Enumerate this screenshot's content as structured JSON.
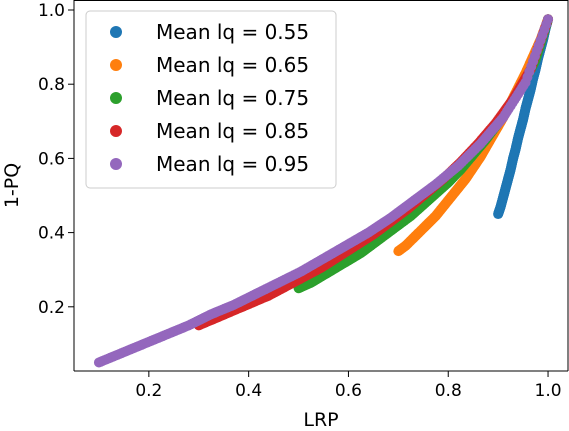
{
  "chart_data": {
    "type": "scatter",
    "xlabel": "LRP",
    "ylabel": "1-PQ",
    "xlim": [
      0.05,
      1.04
    ],
    "ylim": [
      0.0,
      1.0
    ],
    "xticks": [
      "0.2",
      "0.4",
      "0.6",
      "0.8",
      "1.0"
    ],
    "yticks": [
      "0.2",
      "0.4",
      "0.6",
      "0.8",
      "1.0"
    ],
    "grid": false,
    "legend_position": "top-left",
    "series": [
      {
        "name": "Mean lq = 0.55",
        "color": "#1f77b4",
        "mean_lq": 0.55,
        "points": [
          [
            0.9,
            0.45
          ],
          [
            0.905,
            0.47
          ],
          [
            0.91,
            0.495
          ],
          [
            0.915,
            0.52
          ],
          [
            0.92,
            0.545
          ],
          [
            0.925,
            0.57
          ],
          [
            0.93,
            0.6
          ],
          [
            0.935,
            0.625
          ],
          [
            0.94,
            0.655
          ],
          [
            0.945,
            0.68
          ],
          [
            0.95,
            0.705
          ],
          [
            0.955,
            0.735
          ],
          [
            0.96,
            0.76
          ],
          [
            0.965,
            0.785
          ],
          [
            0.97,
            0.815
          ],
          [
            0.975,
            0.84
          ],
          [
            0.98,
            0.87
          ],
          [
            0.985,
            0.895
          ],
          [
            0.99,
            0.92
          ],
          [
            0.995,
            0.95
          ],
          [
            1.0,
            0.975
          ]
        ]
      },
      {
        "name": "Mean lq = 0.65",
        "color": "#ff7f0e",
        "mean_lq": 0.65,
        "points": [
          [
            0.7,
            0.35
          ],
          [
            0.715,
            0.365
          ],
          [
            0.73,
            0.385
          ],
          [
            0.745,
            0.405
          ],
          [
            0.76,
            0.425
          ],
          [
            0.775,
            0.445
          ],
          [
            0.79,
            0.47
          ],
          [
            0.805,
            0.495
          ],
          [
            0.82,
            0.52
          ],
          [
            0.835,
            0.545
          ],
          [
            0.85,
            0.575
          ],
          [
            0.865,
            0.605
          ],
          [
            0.88,
            0.64
          ],
          [
            0.895,
            0.675
          ],
          [
            0.91,
            0.71
          ],
          [
            0.925,
            0.75
          ],
          [
            0.94,
            0.79
          ],
          [
            0.955,
            0.83
          ],
          [
            0.97,
            0.875
          ],
          [
            0.985,
            0.92
          ],
          [
            1.0,
            0.975
          ]
        ]
      },
      {
        "name": "Mean lq = 0.75",
        "color": "#2ca02c",
        "mean_lq": 0.75,
        "points": [
          [
            0.5,
            0.25
          ],
          [
            0.525,
            0.265
          ],
          [
            0.55,
            0.285
          ],
          [
            0.575,
            0.305
          ],
          [
            0.6,
            0.325
          ],
          [
            0.625,
            0.345
          ],
          [
            0.65,
            0.37
          ],
          [
            0.675,
            0.395
          ],
          [
            0.7,
            0.42
          ],
          [
            0.725,
            0.445
          ],
          [
            0.75,
            0.475
          ],
          [
            0.775,
            0.505
          ],
          [
            0.8,
            0.535
          ],
          [
            0.825,
            0.57
          ],
          [
            0.85,
            0.61
          ],
          [
            0.875,
            0.65
          ],
          [
            0.9,
            0.695
          ],
          [
            0.925,
            0.745
          ],
          [
            0.95,
            0.8
          ],
          [
            0.975,
            0.865
          ],
          [
            1.0,
            0.975
          ]
        ]
      },
      {
        "name": "Mean lq = 0.85",
        "color": "#d62728",
        "mean_lq": 0.85,
        "points": [
          [
            0.3,
            0.15
          ],
          [
            0.335,
            0.17
          ],
          [
            0.37,
            0.19
          ],
          [
            0.405,
            0.21
          ],
          [
            0.44,
            0.23
          ],
          [
            0.475,
            0.255
          ],
          [
            0.51,
            0.28
          ],
          [
            0.545,
            0.305
          ],
          [
            0.58,
            0.335
          ],
          [
            0.615,
            0.365
          ],
          [
            0.65,
            0.395
          ],
          [
            0.685,
            0.43
          ],
          [
            0.72,
            0.465
          ],
          [
            0.755,
            0.505
          ],
          [
            0.79,
            0.545
          ],
          [
            0.825,
            0.59
          ],
          [
            0.86,
            0.64
          ],
          [
            0.895,
            0.695
          ],
          [
            0.93,
            0.76
          ],
          [
            0.965,
            0.84
          ],
          [
            1.0,
            0.975
          ]
        ]
      },
      {
        "name": "Mean lq = 0.95",
        "color": "#9467bd",
        "mean_lq": 0.95,
        "points": [
          [
            0.1,
            0.05
          ],
          [
            0.145,
            0.075
          ],
          [
            0.19,
            0.1
          ],
          [
            0.235,
            0.125
          ],
          [
            0.28,
            0.15
          ],
          [
            0.325,
            0.18
          ],
          [
            0.37,
            0.205
          ],
          [
            0.415,
            0.235
          ],
          [
            0.46,
            0.265
          ],
          [
            0.505,
            0.295
          ],
          [
            0.55,
            0.33
          ],
          [
            0.595,
            0.365
          ],
          [
            0.64,
            0.4
          ],
          [
            0.685,
            0.44
          ],
          [
            0.73,
            0.485
          ],
          [
            0.775,
            0.53
          ],
          [
            0.82,
            0.58
          ],
          [
            0.865,
            0.64
          ],
          [
            0.91,
            0.71
          ],
          [
            0.955,
            0.805
          ],
          [
            1.0,
            0.975
          ]
        ]
      }
    ]
  }
}
